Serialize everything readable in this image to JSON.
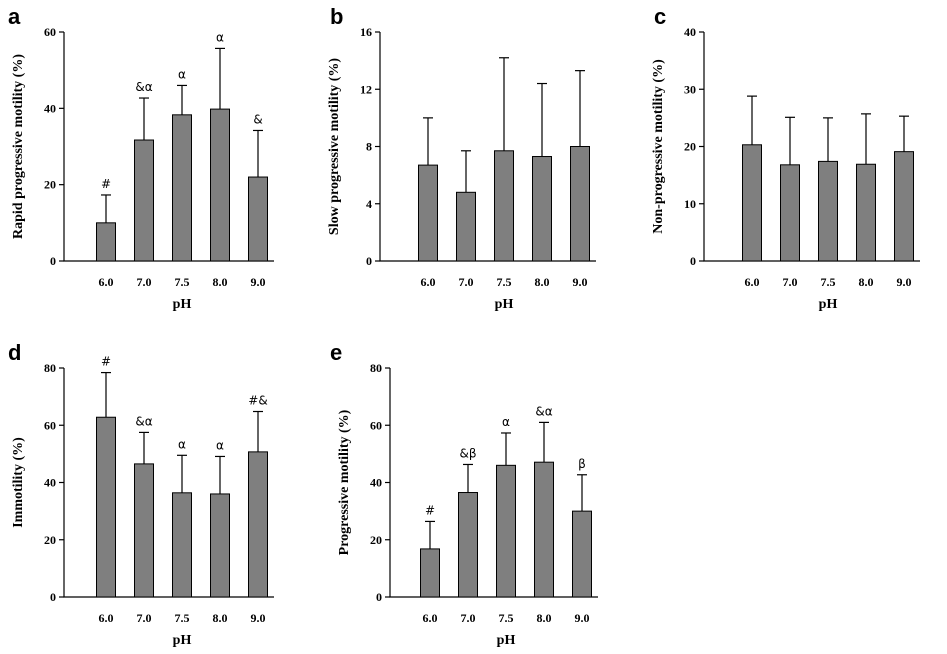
{
  "chart_data": [
    {
      "panel": "a",
      "type": "bar",
      "xlabel": "pH",
      "ylabel": "Rapid progressive motility (%)",
      "categories": [
        "6.0",
        "7.0",
        "7.5",
        "8.0",
        "9.0"
      ],
      "values": [
        10,
        31.7,
        38.3,
        39.8,
        22
      ],
      "errors": [
        7.3,
        11,
        7.7,
        15.9,
        12.2
      ],
      "annotations": [
        "#",
        "&α",
        "α",
        "α",
        "&"
      ],
      "ylim": [
        0,
        60
      ],
      "yticks": [
        0,
        20,
        40,
        60
      ]
    },
    {
      "panel": "b",
      "type": "bar",
      "xlabel": "pH",
      "ylabel": "Slow progressive motility (%)",
      "categories": [
        "6.0",
        "7.0",
        "7.5",
        "8.0",
        "9.0"
      ],
      "values": [
        6.7,
        4.8,
        7.7,
        7.3,
        8
      ],
      "errors": [
        3.3,
        2.9,
        6.5,
        5.1,
        5.3
      ],
      "annotations": [
        "",
        "",
        "",
        "",
        ""
      ],
      "ylim": [
        0,
        16
      ],
      "yticks": [
        0,
        4,
        8,
        12,
        16
      ]
    },
    {
      "panel": "c",
      "type": "bar",
      "xlabel": "pH",
      "ylabel": "Non-progressive motility (%)",
      "categories": [
        "6.0",
        "7.0",
        "7.5",
        "8.0",
        "9.0"
      ],
      "values": [
        20.3,
        16.8,
        17.4,
        16.9,
        19.1
      ],
      "errors": [
        8.5,
        8.3,
        7.6,
        8.8,
        6.2
      ],
      "annotations": [
        "",
        "",
        "",
        "",
        ""
      ],
      "ylim": [
        0,
        40
      ],
      "yticks": [
        0,
        10,
        20,
        30,
        40
      ]
    },
    {
      "panel": "d",
      "type": "bar",
      "xlabel": "pH",
      "ylabel": "Immotility (%)",
      "categories": [
        "6.0",
        "7.0",
        "7.5",
        "8.0",
        "9.0"
      ],
      "values": [
        62.8,
        46.5,
        36.4,
        36,
        50.7
      ],
      "errors": [
        15.6,
        11,
        13.1,
        13.1,
        14.1
      ],
      "annotations": [
        "#",
        "&α",
        "α",
        "α",
        "#&"
      ],
      "ylim": [
        0,
        80
      ],
      "yticks": [
        0,
        20,
        40,
        60,
        80
      ]
    },
    {
      "panel": "e",
      "type": "bar",
      "xlabel": "pH",
      "ylabel": "Progressive motility (%)",
      "categories": [
        "6.0",
        "7.0",
        "7.5",
        "8.0",
        "9.0"
      ],
      "values": [
        16.8,
        36.5,
        46,
        47.1,
        30
      ],
      "errors": [
        9.6,
        9.8,
        11.3,
        13.9,
        12.7
      ],
      "annotations": [
        "#",
        "&β",
        "α",
        "&α",
        "β"
      ],
      "ylim": [
        0,
        80
      ],
      "yticks": [
        0,
        20,
        40,
        60,
        80
      ]
    }
  ]
}
